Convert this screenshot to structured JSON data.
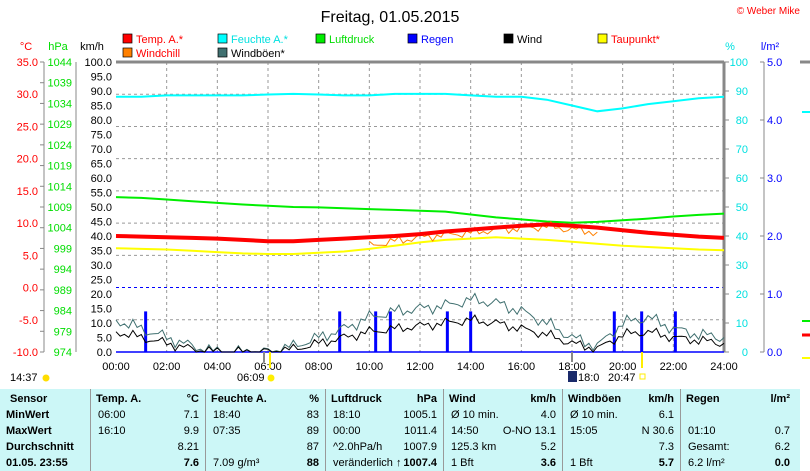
{
  "title": "Freitag, 01.05.2015",
  "copyright": "© Weber Mike",
  "legend": [
    {
      "label": "Temp. A.*",
      "color": "#ff0000",
      "text_color": "#ff0000"
    },
    {
      "label": "Feuchte A.*",
      "color": "#00ffff",
      "text_color": "#00e0e0"
    },
    {
      "label": "Luftdruck",
      "color": "#00ee00",
      "text_color": "#00dd00"
    },
    {
      "label": "Regen",
      "color": "#0000ff",
      "text_color": "#0000ff"
    },
    {
      "label": "Wind",
      "color": "#000000",
      "text_color": "#000000"
    },
    {
      "label": "Taupunkt*",
      "color": "#ffff00",
      "text_color": "#ff0000"
    },
    {
      "label": "Windchill",
      "color": "#ff8000",
      "text_color": "#ff0000"
    },
    {
      "label": "Windböen*",
      "color": "#407070",
      "text_color": "#000000"
    }
  ],
  "axes": {
    "temp_unit": "°C",
    "hpa_unit": "hPa",
    "kmh_unit": "km/h",
    "pct_unit": "%",
    "rain_unit": "l/m²"
  },
  "sun": {
    "now": "14:37",
    "sunrise": "06:09",
    "moonrise": "18:0",
    "sunset": "20:47"
  },
  "chart_data": {
    "type": "line",
    "x_hours": [
      0,
      1,
      2,
      3,
      4,
      5,
      6,
      7,
      8,
      9,
      10,
      11,
      12,
      13,
      14,
      15,
      16,
      17,
      18,
      19,
      20,
      21,
      22,
      23,
      24
    ],
    "xticks": [
      "00:00",
      "02:00",
      "04:00",
      "06:00",
      "08:00",
      "10:00",
      "12:00",
      "14:00",
      "16:00",
      "18:00",
      "20:00",
      "22:00",
      "24:00"
    ],
    "temp_range": [
      -10,
      35
    ],
    "hpa_range": [
      974,
      1044
    ],
    "kmh_range": [
      0,
      100
    ],
    "pct_range": [
      0,
      100
    ],
    "rain_range": [
      0,
      5
    ],
    "series": {
      "temp": [
        8.0,
        7.9,
        7.8,
        7.7,
        7.6,
        7.4,
        7.2,
        7.2,
        7.4,
        7.6,
        7.8,
        8.0,
        8.3,
        8.7,
        9.0,
        9.3,
        9.6,
        9.8,
        9.6,
        9.3,
        8.9,
        8.5,
        8.2,
        7.9,
        7.7
      ],
      "humidity": [
        88,
        88,
        88.5,
        88.5,
        88.5,
        88.5,
        88.8,
        89,
        88.8,
        88.5,
        88.5,
        89,
        89,
        89,
        88.5,
        88,
        88,
        87,
        85,
        83,
        84,
        85.5,
        86.5,
        87.5,
        88
      ],
      "pressure": [
        1011.4,
        1011.2,
        1010.8,
        1010.4,
        1010.0,
        1009.6,
        1009.3,
        1009.0,
        1008.9,
        1008.7,
        1008.5,
        1008.3,
        1008.1,
        1007.9,
        1007.2,
        1006.5,
        1006.0,
        1005.5,
        1005.2,
        1005.4,
        1005.8,
        1006.2,
        1006.7,
        1007.1,
        1007.4
      ],
      "dewpoint": [
        6.1,
        6.0,
        5.9,
        5.7,
        5.5,
        5.3,
        5.2,
        5.2,
        5.4,
        5.6,
        6.0,
        6.5,
        7.0,
        7.4,
        7.6,
        7.8,
        7.6,
        7.4,
        7.1,
        6.8,
        6.5,
        6.3,
        6.1,
        5.9,
        5.8
      ],
      "wind": [
        7,
        5,
        3,
        1,
        0,
        0,
        0,
        1,
        3,
        5,
        7,
        8,
        9,
        10,
        11,
        10,
        8,
        6,
        3,
        1,
        6,
        7,
        5,
        4,
        3
      ],
      "gust": [
        11,
        8,
        5,
        2,
        0,
        0,
        0,
        2,
        5,
        8,
        12,
        14,
        15,
        16,
        18,
        17,
        14,
        10,
        5,
        2,
        10,
        12,
        8,
        6,
        5
      ],
      "windchill": [
        null,
        null,
        null,
        null,
        null,
        null,
        null,
        null,
        null,
        null,
        6.5,
        7.2,
        7.8,
        8.2,
        8.5,
        9.0,
        9.2,
        9.5,
        9.0,
        8.6,
        null,
        null,
        null,
        null,
        null
      ],
      "rain": [
        {
          "t": 1.17,
          "v": 0.7
        },
        {
          "t": 8.83,
          "v": 0.7
        },
        {
          "t": 10.25,
          "v": 0.7
        },
        {
          "t": 10.83,
          "v": 0.7
        },
        {
          "t": 13.08,
          "v": 0.7
        },
        {
          "t": 14.0,
          "v": 0.7
        },
        {
          "t": 19.67,
          "v": 0.7
        },
        {
          "t": 20.75,
          "v": 0.7
        },
        {
          "t": 22.08,
          "v": 0.7
        }
      ]
    }
  },
  "table": {
    "headers": [
      [
        "Sensor",
        ""
      ],
      [
        "Temp. A.",
        "°C"
      ],
      [
        "Feuchte A.",
        "%"
      ],
      [
        "Luftdruck",
        "hPa"
      ],
      [
        "Wind",
        "km/h"
      ],
      [
        "Windböen",
        "km/h"
      ],
      [
        "Regen",
        "l/m²"
      ]
    ],
    "rows": [
      [
        "MinWert",
        "06:00",
        "7.1",
        "18:40",
        "83",
        "18:10",
        "1005.1",
        "Ø 10 min.",
        "4.0",
        "Ø 10 min.",
        "6.1",
        "",
        ""
      ],
      [
        "MaxWert",
        "16:10",
        "9.9",
        "07:35",
        "89",
        "00:00",
        "1011.4",
        "14:50",
        "O-NO 13.1",
        "15:05",
        "N 30.6",
        "01:10",
        "0.7"
      ],
      [
        "Durchschnitt",
        "",
        "8.21",
        "",
        "87",
        "^2.0hPa/h",
        "1007.9",
        "125.3 km",
        "5.2",
        "",
        "7.3",
        "Gesamt:",
        "6.2"
      ],
      [
        "01.05. 23:55",
        "",
        "7.6",
        "7.09 g/m³",
        "88",
        "veränderlich ↑",
        "1007.4",
        "1 Bft",
        "3.6",
        "1 Bft",
        "5.7",
        "6.2 l/m²",
        "0.0"
      ]
    ]
  }
}
